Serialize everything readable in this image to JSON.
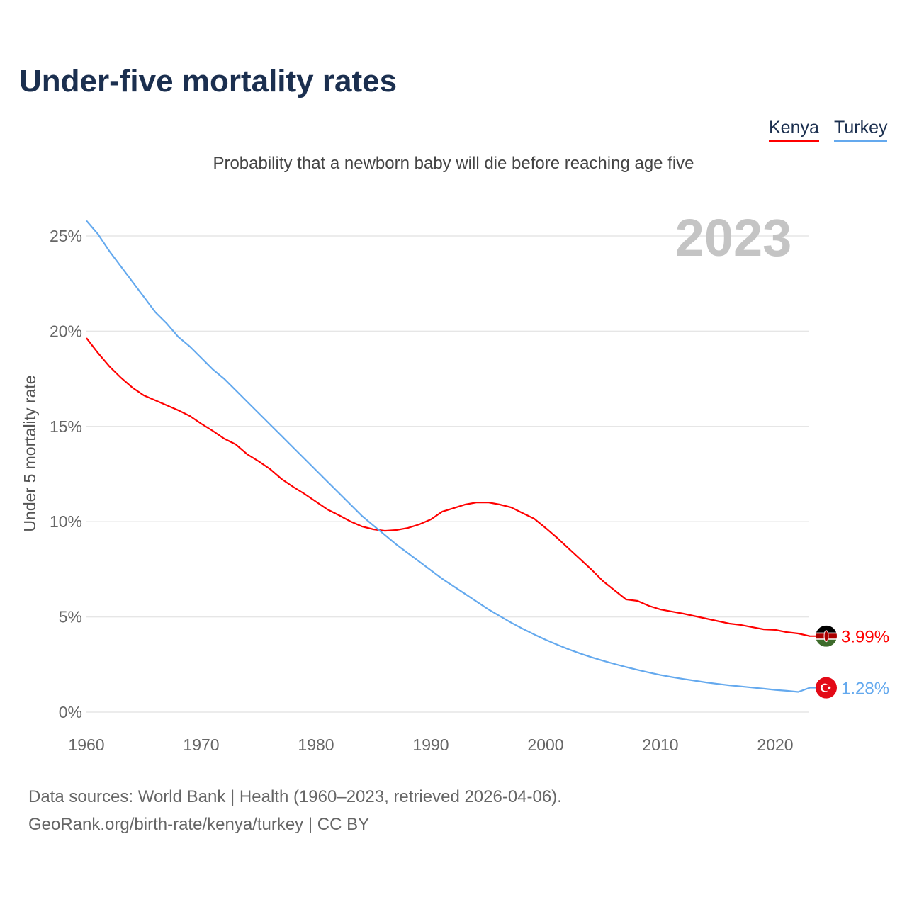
{
  "chart_data": {
    "type": "line",
    "title": "Under-five mortality rates",
    "subtitle": "Probability that a newborn baby will die before reaching age five",
    "ylabel": "Under 5 mortality rate",
    "xlabel": "",
    "current_year_label": "2023",
    "xlim": [
      1960,
      2023
    ],
    "ylim": [
      0,
      25
    ],
    "x_ticks": [
      "1960",
      "1970",
      "1980",
      "1990",
      "2000",
      "2010",
      "2020"
    ],
    "y_ticks": [
      "0%",
      "5%",
      "10%",
      "15%",
      "20%",
      "25%"
    ],
    "grid": true,
    "legend_position": "top-right",
    "series": [
      {
        "name": "Kenya",
        "color": "#ff0000",
        "end_label": "3.99%",
        "flag": "kenya-flag",
        "values": [
          19.64,
          18.86,
          18.15,
          17.56,
          17.04,
          16.63,
          16.37,
          16.11,
          15.85,
          15.55,
          15.14,
          14.77,
          14.36,
          14.06,
          13.54,
          13.17,
          12.76,
          12.24,
          11.83,
          11.46,
          11.05,
          10.64,
          10.34,
          10.01,
          9.75,
          9.6,
          9.52,
          9.56,
          9.67,
          9.86,
          10.12,
          10.53,
          10.71,
          10.9,
          11.01,
          11.01,
          10.9,
          10.75,
          10.45,
          10.16,
          9.67,
          9.15,
          8.59,
          8.04,
          7.48,
          6.88,
          6.4,
          5.92,
          5.84,
          5.58,
          5.39,
          5.28,
          5.17,
          5.04,
          4.91,
          4.78,
          4.65,
          4.58,
          4.46,
          4.35,
          4.32,
          4.2,
          4.13,
          3.99
        ]
      },
      {
        "name": "Turkey",
        "color": "#64a9ee",
        "end_label": "1.28%",
        "flag": "turkey-flag",
        "values": [
          25.8,
          25.1,
          24.2,
          23.4,
          22.6,
          21.8,
          21.0,
          20.4,
          19.7,
          19.2,
          18.6,
          18.0,
          17.5,
          16.9,
          16.3,
          15.7,
          15.1,
          14.5,
          13.9,
          13.3,
          12.7,
          12.1,
          11.5,
          10.9,
          10.3,
          9.8,
          9.3,
          8.8,
          8.35,
          7.9,
          7.45,
          7.0,
          6.6,
          6.2,
          5.8,
          5.4,
          5.05,
          4.7,
          4.38,
          4.08,
          3.8,
          3.54,
          3.3,
          3.08,
          2.88,
          2.7,
          2.53,
          2.37,
          2.22,
          2.08,
          1.95,
          1.84,
          1.74,
          1.65,
          1.56,
          1.48,
          1.41,
          1.35,
          1.29,
          1.23,
          1.17,
          1.12,
          1.06,
          1.28
        ]
      }
    ]
  },
  "footer": {
    "line1": "Data sources: World Bank | Health (1960–2023, retrieved 2026-04-06).",
    "line2": "GeoRank.org/birth-rate/kenya/turkey | CC BY"
  }
}
